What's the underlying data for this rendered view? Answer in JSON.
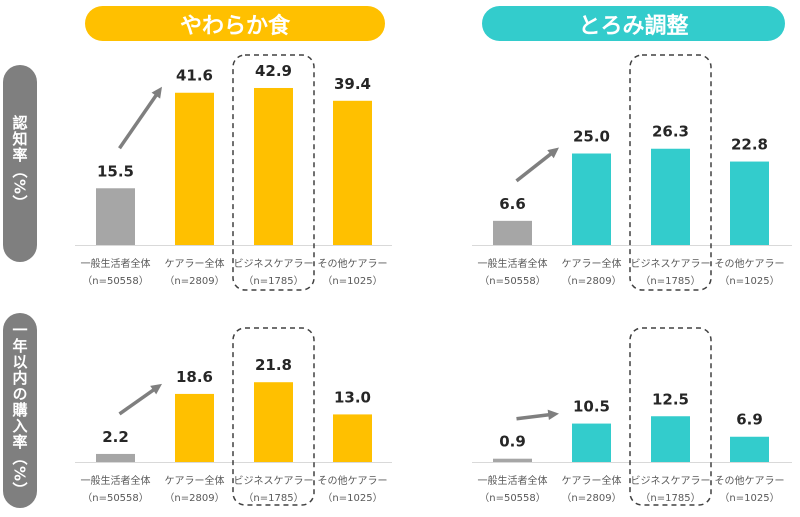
{
  "colors": {
    "gray": "#a6a6a6",
    "yellow": "#ffc000",
    "teal": "#33cccc",
    "arrow": "#7f7f7f"
  },
  "headers": {
    "left": "やわらか食",
    "right": "とろみ調整"
  },
  "side_labels": {
    "top": "認知率（%）",
    "bottom": "一年以内の購入率（%）"
  },
  "chart_data": [
    {
      "type": "bar",
      "title": "やわらか食",
      "ylabel": "認知率（%）",
      "categories": [
        "一般生活者全体",
        "ケアラー全体",
        "ビジネスケアラー",
        "その他ケアラー"
      ],
      "n_labels": [
        "（n=50558）",
        "（n=2809）",
        "（n=1785）",
        "（n=1025）"
      ],
      "values": [
        15.5,
        41.6,
        42.9,
        39.4
      ],
      "labels": [
        "15.5",
        "41.6",
        "42.9",
        "39.4"
      ],
      "highlight_index": 2
    },
    {
      "type": "bar",
      "title": "とろみ調整",
      "ylabel": "認知率（%）",
      "categories": [
        "一般生活者全体",
        "ケアラー全体",
        "ビジネスケアラー",
        "その他ケアラー"
      ],
      "n_labels": [
        "（n=50558）",
        "（n=2809）",
        "（n=1785）",
        "（n=1025）"
      ],
      "values": [
        6.6,
        25.0,
        26.3,
        22.8
      ],
      "labels": [
        "6.6",
        "25.0",
        "26.3",
        "22.8"
      ],
      "highlight_index": 2
    },
    {
      "type": "bar",
      "title": "やわらか食",
      "ylabel": "一年以内の購入率（%）",
      "categories": [
        "一般生活者全体",
        "ケアラー全体",
        "ビジネスケアラー",
        "その他ケアラー"
      ],
      "n_labels": [
        "（n=50558）",
        "（n=2809）",
        "（n=1785）",
        "（n=1025）"
      ],
      "values": [
        2.2,
        18.6,
        21.8,
        13.0
      ],
      "labels": [
        "2.2",
        "18.6",
        "21.8",
        "13.0"
      ],
      "highlight_index": 2
    },
    {
      "type": "bar",
      "title": "とろみ調整",
      "ylabel": "一年以内の購入率（%）",
      "categories": [
        "一般生活者全体",
        "ケアラー全体",
        "ビジネスケアラー",
        "その他ケアラー"
      ],
      "n_labels": [
        "（n=50558）",
        "（n=2809）",
        "（n=1785）",
        "（n=1025）"
      ],
      "values": [
        0.9,
        10.5,
        12.5,
        6.9
      ],
      "labels": [
        "0.9",
        "10.5",
        "12.5",
        "6.9"
      ],
      "highlight_index": 2
    }
  ]
}
